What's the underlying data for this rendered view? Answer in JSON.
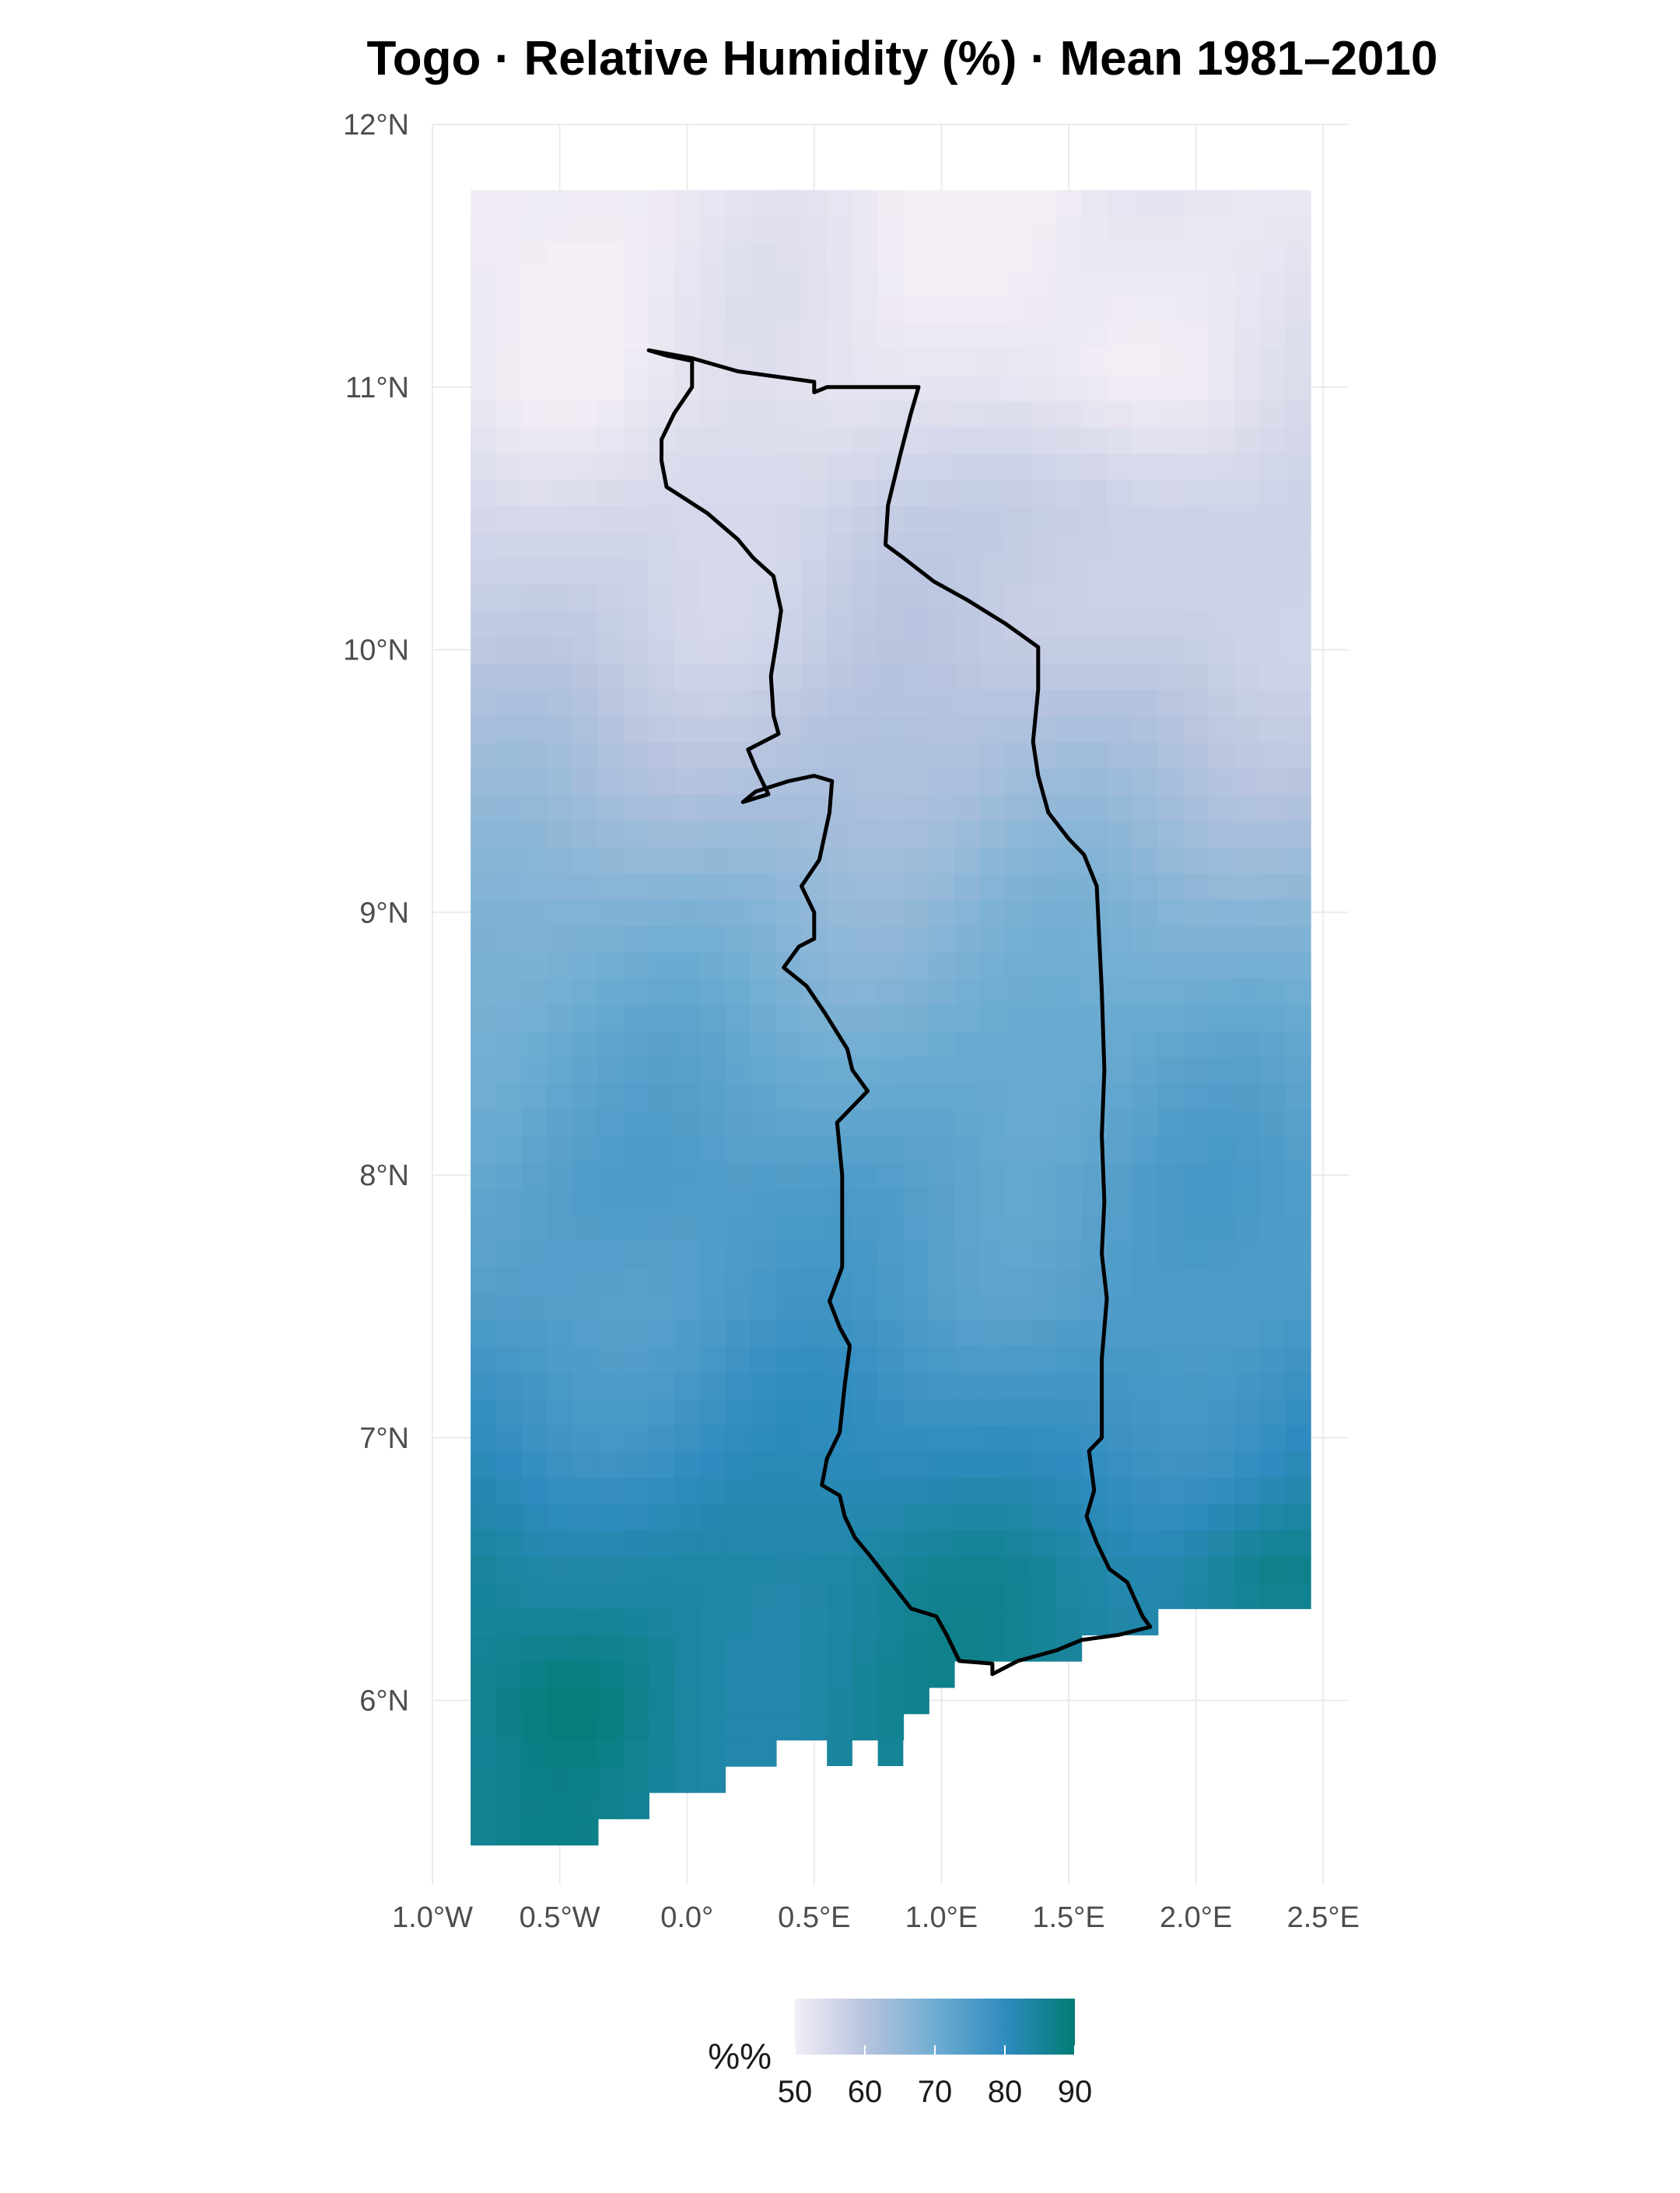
{
  "title": "Togo · Relative Humidity (%) · Mean 1981–2010",
  "chart_data": {
    "type": "heatmap",
    "title": "Togo · Relative Humidity (%) · Mean 1981–2010",
    "xlim": [
      -1.0,
      2.6
    ],
    "ylim": [
      5.3,
      12.0
    ],
    "x_ticks": [
      {
        "value": -1.0,
        "label": "1.0°W"
      },
      {
        "value": -0.5,
        "label": "0.5°W"
      },
      {
        "value": 0.0,
        "label": "0.0°"
      },
      {
        "value": 0.5,
        "label": "0.5°E"
      },
      {
        "value": 1.0,
        "label": "1.0°E"
      },
      {
        "value": 1.5,
        "label": "1.5°E"
      },
      {
        "value": 2.0,
        "label": "2.0°E"
      },
      {
        "value": 2.5,
        "label": "2.5°E"
      }
    ],
    "y_ticks": [
      {
        "value": 6,
        "label": "6°N"
      },
      {
        "value": 7,
        "label": "7°N"
      },
      {
        "value": 8,
        "label": "8°N"
      },
      {
        "value": 9,
        "label": "9°N"
      },
      {
        "value": 10,
        "label": "10°N"
      },
      {
        "value": 11,
        "label": "11°N"
      },
      {
        "value": 12,
        "label": "12°N"
      }
    ],
    "grid": true,
    "raster": {
      "cell_size_deg": 0.1,
      "lon_min": -0.85,
      "lon_max": 2.45,
      "lat_min": 5.45,
      "lat_max": 11.75,
      "profile_lat": [
        5.45,
        6.0,
        6.5,
        7.0,
        7.5,
        8.0,
        8.5,
        9.0,
        9.5,
        10.0,
        10.5,
        11.0,
        11.75
      ],
      "profile_rh": [
        85,
        85,
        84,
        79,
        75,
        74,
        71,
        67,
        62,
        58,
        56,
        52,
        51
      ],
      "missing_bottom_edge": [
        [
          -0.85,
          5.45
        ],
        [
          -0.35,
          5.45
        ],
        [
          -0.35,
          5.55
        ],
        [
          -0.15,
          5.55
        ],
        [
          -0.15,
          5.65
        ],
        [
          0.15,
          5.65
        ],
        [
          0.15,
          5.75
        ],
        [
          0.35,
          5.75
        ],
        [
          0.35,
          5.85
        ],
        [
          0.85,
          5.85
        ],
        [
          0.85,
          5.95
        ],
        [
          0.95,
          5.95
        ],
        [
          0.95,
          6.05
        ],
        [
          1.05,
          6.05
        ],
        [
          1.05,
          6.15
        ],
        [
          1.55,
          6.15
        ],
        [
          1.55,
          6.25
        ],
        [
          1.85,
          6.25
        ],
        [
          1.85,
          6.35
        ],
        [
          2.45,
          6.35
        ]
      ]
    },
    "country": "Togo",
    "outline": [
      [
        -0.15,
        11.14
      ],
      [
        0.02,
        11.11
      ],
      [
        0.2,
        11.06
      ],
      [
        0.5,
        11.02
      ],
      [
        0.5,
        10.98
      ],
      [
        0.55,
        11.0
      ],
      [
        0.91,
        11.0
      ],
      [
        0.88,
        10.9
      ],
      [
        0.84,
        10.75
      ],
      [
        0.79,
        10.55
      ],
      [
        0.78,
        10.4
      ],
      [
        0.85,
        10.35
      ],
      [
        0.97,
        10.26
      ],
      [
        1.1,
        10.19
      ],
      [
        1.25,
        10.1
      ],
      [
        1.38,
        10.01
      ],
      [
        1.38,
        9.85
      ],
      [
        1.36,
        9.65
      ],
      [
        1.38,
        9.52
      ],
      [
        1.42,
        9.38
      ],
      [
        1.5,
        9.28
      ],
      [
        1.56,
        9.22
      ],
      [
        1.61,
        9.1
      ],
      [
        1.62,
        8.9
      ],
      [
        1.63,
        8.7
      ],
      [
        1.64,
        8.4
      ],
      [
        1.63,
        8.15
      ],
      [
        1.64,
        7.9
      ],
      [
        1.63,
        7.7
      ],
      [
        1.65,
        7.53
      ],
      [
        1.63,
        7.3
      ],
      [
        1.63,
        7.0
      ],
      [
        1.58,
        6.95
      ],
      [
        1.6,
        6.8
      ],
      [
        1.57,
        6.7
      ],
      [
        1.61,
        6.6
      ],
      [
        1.66,
        6.5
      ],
      [
        1.73,
        6.45
      ],
      [
        1.79,
        6.32
      ],
      [
        1.82,
        6.28
      ],
      [
        1.7,
        6.25
      ],
      [
        1.55,
        6.23
      ],
      [
        1.45,
        6.19
      ],
      [
        1.3,
        6.15
      ],
      [
        1.2,
        6.1
      ],
      [
        1.2,
        6.14
      ],
      [
        1.07,
        6.15
      ],
      [
        1.02,
        6.25
      ],
      [
        0.98,
        6.32
      ],
      [
        0.88,
        6.35
      ],
      [
        0.8,
        6.45
      ],
      [
        0.72,
        6.55
      ],
      [
        0.66,
        6.62
      ],
      [
        0.62,
        6.7
      ],
      [
        0.6,
        6.78
      ],
      [
        0.53,
        6.82
      ],
      [
        0.55,
        6.92
      ],
      [
        0.6,
        7.02
      ],
      [
        0.62,
        7.2
      ],
      [
        0.64,
        7.35
      ],
      [
        0.6,
        7.42
      ],
      [
        0.56,
        7.52
      ],
      [
        0.61,
        7.65
      ],
      [
        0.61,
        7.82
      ],
      [
        0.61,
        8.0
      ],
      [
        0.59,
        8.2
      ],
      [
        0.71,
        8.32
      ],
      [
        0.65,
        8.4
      ],
      [
        0.63,
        8.48
      ],
      [
        0.54,
        8.62
      ],
      [
        0.47,
        8.72
      ],
      [
        0.38,
        8.79
      ],
      [
        0.44,
        8.87
      ],
      [
        0.5,
        8.9
      ],
      [
        0.5,
        9.0
      ],
      [
        0.45,
        9.1
      ],
      [
        0.52,
        9.2
      ],
      [
        0.56,
        9.38
      ],
      [
        0.57,
        9.5
      ],
      [
        0.5,
        9.52
      ],
      [
        0.4,
        9.5
      ],
      [
        0.27,
        9.46
      ],
      [
        0.22,
        9.42
      ],
      [
        0.32,
        9.45
      ],
      [
        0.27,
        9.55
      ],
      [
        0.24,
        9.62
      ],
      [
        0.36,
        9.68
      ],
      [
        0.34,
        9.75
      ],
      [
        0.33,
        9.9
      ],
      [
        0.35,
        10.02
      ],
      [
        0.37,
        10.15
      ],
      [
        0.34,
        10.28
      ],
      [
        0.26,
        10.35
      ],
      [
        0.2,
        10.42
      ],
      [
        0.08,
        10.52
      ],
      [
        -0.08,
        10.62
      ],
      [
        -0.1,
        10.72
      ],
      [
        -0.1,
        10.8
      ],
      [
        -0.05,
        10.9
      ],
      [
        0.02,
        11.0
      ],
      [
        0.02,
        11.1
      ],
      [
        -0.08,
        11.12
      ]
    ],
    "legend": {
      "title": "%%",
      "min": 50,
      "max": 90,
      "ticks": [
        "50",
        "60",
        "70",
        "80",
        "90"
      ],
      "colors": [
        "#f4eef6",
        "#b8c4df",
        "#6fadd2",
        "#2f8bbf",
        "#007c74"
      ]
    }
  }
}
